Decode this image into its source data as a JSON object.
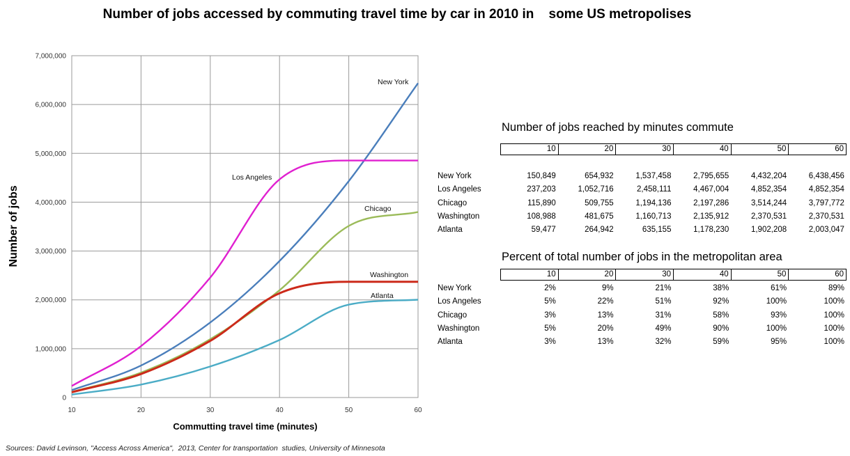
{
  "title": "Number of jobs accessed by commuting travel time by car in 2010 in    some US metropolises",
  "chart_data": {
    "type": "line",
    "xlabel": "Commutting travel time (minutes)",
    "ylabel": "Number of jobs",
    "xlim": [
      10,
      60
    ],
    "ylim": [
      0,
      7000000
    ],
    "x_ticks": [
      "10",
      "20",
      "30",
      "40",
      "50",
      "60"
    ],
    "y_ticks": [
      "0",
      "1,000,000",
      "2,000,000",
      "3,000,000",
      "4,000,000",
      "5,000,000",
      "6,000,000",
      "7,000,000"
    ],
    "grid": true,
    "x": [
      10,
      20,
      30,
      40,
      50,
      60
    ],
    "series": [
      {
        "name": "New York",
        "color": "#4a7ebb",
        "values": [
          150849,
          654932,
          1537458,
          2795655,
          4432204,
          6438456
        ]
      },
      {
        "name": "Los Angeles",
        "color": "#e020d0",
        "values": [
          237203,
          1052716,
          2458111,
          4467004,
          4852354,
          4852354
        ]
      },
      {
        "name": "Chicago",
        "color": "#9bbb59",
        "values": [
          115890,
          509755,
          1194136,
          2197286,
          3514244,
          3797772
        ]
      },
      {
        "name": "Washington",
        "color": "#cc2a1a",
        "values": [
          108988,
          481675,
          1160713,
          2135912,
          2370531,
          2370531
        ]
      },
      {
        "name": "Atlanta",
        "color": "#4bacc6",
        "values": [
          59477,
          264942,
          635155,
          1178230,
          1902208,
          2003047
        ]
      }
    ]
  },
  "table1": {
    "title": "Number of jobs reached by minutes commute",
    "columns": [
      "10",
      "20",
      "30",
      "40",
      "50",
      "60"
    ],
    "rows": [
      {
        "label": "New York",
        "values": [
          "150,849",
          "654,932",
          "1,537,458",
          "2,795,655",
          "4,432,204",
          "6,438,456"
        ]
      },
      {
        "label": "Los Angeles",
        "values": [
          "237,203",
          "1,052,716",
          "2,458,111",
          "4,467,004",
          "4,852,354",
          "4,852,354"
        ]
      },
      {
        "label": "Chicago",
        "values": [
          "115,890",
          "509,755",
          "1,194,136",
          "2,197,286",
          "3,514,244",
          "3,797,772"
        ]
      },
      {
        "label": "Washington",
        "values": [
          "108,988",
          "481,675",
          "1,160,713",
          "2,135,912",
          "2,370,531",
          "2,370,531"
        ]
      },
      {
        "label": "Atlanta",
        "values": [
          "59,477",
          "264,942",
          "635,155",
          "1,178,230",
          "1,902,208",
          "2,003,047"
        ]
      }
    ]
  },
  "table2": {
    "title": "Percent of total number of jobs in the metropolitan area",
    "columns": [
      "10",
      "20",
      "30",
      "40",
      "50",
      "60"
    ],
    "rows": [
      {
        "label": "New York",
        "values": [
          "2%",
          "9%",
          "21%",
          "38%",
          "61%",
          "89%"
        ]
      },
      {
        "label": "Los Angeles",
        "values": [
          "5%",
          "22%",
          "51%",
          "92%",
          "100%",
          "100%"
        ]
      },
      {
        "label": "Chicago",
        "values": [
          "3%",
          "13%",
          "31%",
          "58%",
          "93%",
          "100%"
        ]
      },
      {
        "label": "Washington",
        "values": [
          "5%",
          "20%",
          "49%",
          "90%",
          "100%",
          "100%"
        ]
      },
      {
        "label": "Atlanta",
        "values": [
          "3%",
          "13%",
          "32%",
          "59%",
          "95%",
          "100%"
        ]
      }
    ]
  },
  "sources": "Sources: David Levinson, \"Access Across America\",  2013, Center for transportation  studies, University of Minnesota"
}
